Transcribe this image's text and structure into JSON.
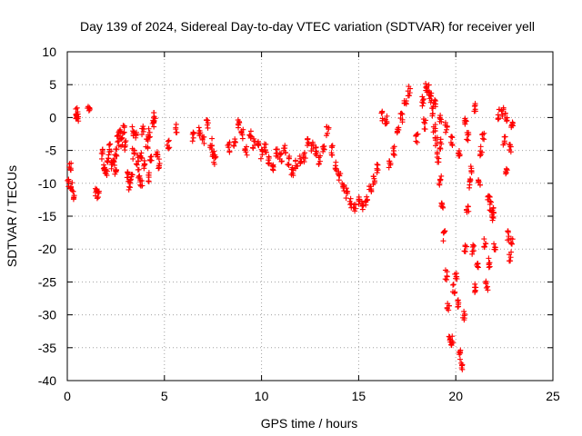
{
  "chart_data": {
    "type": "scatter",
    "title": "Day 139 of 2024, Sidereal Day-to-day VTEC variation (SDTVAR) for receiver yell",
    "xlabel": "GPS time / hours",
    "ylabel": "SDTVAR / TECUs",
    "xlim": [
      0,
      25
    ],
    "ylim": [
      -40,
      10
    ],
    "xticks": [
      0,
      5,
      10,
      15,
      20,
      25
    ],
    "yticks": [
      10,
      5,
      0,
      -5,
      -10,
      -15,
      -20,
      -25,
      -30,
      -35,
      -40
    ],
    "grid": true,
    "marker": "+",
    "series_color": "#ff0000",
    "series": [
      {
        "name": "SDTVAR",
        "trace_points": [
          [
            0.05,
            -10.2
          ],
          [
            0.15,
            -7.5
          ],
          [
            0.2,
            -10.5
          ],
          [
            0.3,
            -11.8
          ],
          [
            0.45,
            0.6
          ],
          [
            0.5,
            0.9
          ],
          [
            0.55,
            -0.2
          ],
          [
            1.1,
            1.2
          ],
          [
            1.5,
            -11.5
          ],
          [
            1.6,
            -12.0
          ],
          [
            1.8,
            -5.5
          ],
          [
            1.9,
            -7.5
          ],
          [
            2.0,
            -8.5
          ],
          [
            2.1,
            -6.0
          ],
          [
            2.2,
            -4.8
          ],
          [
            2.3,
            -7.2
          ],
          [
            2.4,
            -6.5
          ],
          [
            2.5,
            -5.5
          ],
          [
            2.6,
            -3.5
          ],
          [
            2.7,
            -2.5
          ],
          [
            2.8,
            -3.8
          ],
          [
            2.9,
            -1.8
          ],
          [
            3.0,
            -4.2
          ],
          [
            3.1,
            -8.5
          ],
          [
            3.2,
            -10.5
          ],
          [
            3.3,
            -9.0
          ],
          [
            3.4,
            -5.5
          ],
          [
            3.5,
            -2.5
          ],
          [
            3.6,
            -6.5
          ],
          [
            3.7,
            -8.5
          ],
          [
            3.8,
            -5.5
          ],
          [
            3.9,
            -2.0
          ],
          [
            4.0,
            -7.0
          ],
          [
            4.1,
            -4.0
          ],
          [
            4.2,
            -9.0
          ],
          [
            4.3,
            -6.5
          ],
          [
            4.4,
            -0.8
          ],
          [
            4.5,
            0.2
          ],
          [
            4.6,
            -5.5
          ],
          [
            4.7,
            -7.0
          ],
          [
            5.2,
            -4.0
          ],
          [
            5.6,
            -1.5
          ],
          [
            6.5,
            -3.0
          ],
          [
            6.8,
            -2.0
          ],
          [
            7.0,
            -3.5
          ],
          [
            7.2,
            -1.0
          ],
          [
            7.4,
            -4.0
          ],
          [
            7.5,
            -5.5
          ],
          [
            7.6,
            -6.5
          ],
          [
            8.3,
            -4.5
          ],
          [
            8.6,
            -4.0
          ],
          [
            8.8,
            -1.0
          ],
          [
            9.0,
            -2.5
          ],
          [
            9.2,
            -5.0
          ],
          [
            9.4,
            -2.5
          ],
          [
            9.6,
            -4.0
          ],
          [
            9.8,
            -3.8
          ],
          [
            10.0,
            -5.5
          ],
          [
            10.2,
            -4.5
          ],
          [
            10.4,
            -6.5
          ],
          [
            10.6,
            -7.5
          ],
          [
            10.8,
            -5.5
          ],
          [
            11.0,
            -6.0
          ],
          [
            11.2,
            -4.8
          ],
          [
            11.4,
            -6.5
          ],
          [
            11.6,
            -8.0
          ],
          [
            11.8,
            -7.0
          ],
          [
            12.0,
            -6.5
          ],
          [
            12.2,
            -6.0
          ],
          [
            12.4,
            -3.5
          ],
          [
            12.6,
            -4.5
          ],
          [
            12.8,
            -5.0
          ],
          [
            13.0,
            -6.5
          ],
          [
            13.2,
            -4.5
          ],
          [
            13.4,
            -2.0
          ],
          [
            13.6,
            -5.0
          ],
          [
            13.8,
            -7.5
          ],
          [
            14.0,
            -9.0
          ],
          [
            14.2,
            -10.5
          ],
          [
            14.4,
            -11.5
          ],
          [
            14.6,
            -13.0
          ],
          [
            14.8,
            -13.8
          ],
          [
            15.0,
            -12.5
          ],
          [
            15.2,
            -13.5
          ],
          [
            15.4,
            -12.5
          ],
          [
            15.6,
            -11.0
          ],
          [
            15.8,
            -9.5
          ],
          [
            16.0,
            -7.8
          ],
          [
            16.2,
            0.2
          ],
          [
            16.4,
            -0.5
          ],
          [
            16.6,
            -7.0
          ],
          [
            16.8,
            -5.0
          ],
          [
            17.0,
            -2.0
          ],
          [
            17.2,
            0.0
          ],
          [
            17.4,
            2.5
          ],
          [
            17.6,
            4.0
          ],
          [
            18.0,
            -3.0
          ],
          [
            18.3,
            2.5
          ],
          [
            18.5,
            4.5
          ],
          [
            18.6,
            4.2
          ],
          [
            18.7,
            3.0
          ],
          [
            18.8,
            1.0
          ],
          [
            18.9,
            -1.5
          ],
          [
            19.0,
            -3.5
          ],
          [
            19.1,
            -6.0
          ],
          [
            19.2,
            -9.5
          ],
          [
            19.3,
            -13.0
          ],
          [
            19.4,
            -18.0
          ],
          [
            19.5,
            -24.0
          ],
          [
            19.6,
            -29.0
          ],
          [
            19.7,
            -33.5
          ],
          [
            19.8,
            -34.0
          ],
          [
            19.9,
            -26.0
          ],
          [
            20.0,
            -24.0
          ],
          [
            20.1,
            -28.0
          ],
          [
            20.2,
            -36.0
          ],
          [
            20.3,
            -38.0
          ],
          [
            20.4,
            -30.0
          ],
          [
            20.5,
            -20.0
          ],
          [
            20.6,
            -14.0
          ],
          [
            20.7,
            -10.0
          ],
          [
            20.8,
            -8.0
          ],
          [
            20.9,
            -20.0
          ],
          [
            21.0,
            -26.0
          ],
          [
            21.1,
            -22.0
          ],
          [
            21.2,
            -10.0
          ],
          [
            21.3,
            -5.0
          ],
          [
            21.4,
            -3.0
          ],
          [
            21.5,
            -19.0
          ],
          [
            21.6,
            -25.5
          ],
          [
            21.7,
            -22.0
          ],
          [
            21.8,
            -13.5
          ],
          [
            21.9,
            -14.5
          ],
          [
            22.0,
            -20.0
          ],
          [
            22.2,
            0.5
          ],
          [
            22.4,
            0.8
          ],
          [
            22.6,
            0.2
          ],
          [
            22.7,
            -18.0
          ],
          [
            22.8,
            -21.0
          ],
          [
            22.9,
            -19.0
          ],
          [
            18.9,
            2.0
          ],
          [
            19.2,
            0.0
          ],
          [
            19.5,
            -1.5
          ],
          [
            19.8,
            -3.5
          ],
          [
            19.2,
            -4.0
          ],
          [
            18.4,
            -1.0
          ],
          [
            21.0,
            1.5
          ],
          [
            20.5,
            -0.5
          ],
          [
            20.2,
            -5.5
          ],
          [
            20.6,
            -3.0
          ],
          [
            22.5,
            -3.5
          ],
          [
            22.6,
            -8.5
          ],
          [
            22.8,
            -4.5
          ],
          [
            22.9,
            -1.2
          ],
          [
            21.9,
            -15.0
          ],
          [
            21.7,
            -12.5
          ],
          [
            3.4,
            -2.0
          ],
          [
            2.5,
            -8.0
          ],
          [
            3.8,
            -10.0
          ],
          [
            4.2,
            -2.5
          ]
        ]
      }
    ]
  }
}
